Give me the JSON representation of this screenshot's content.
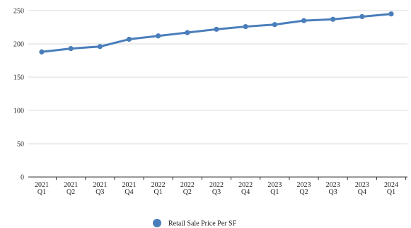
{
  "chart_data": {
    "type": "line",
    "categories": [
      "2021 Q1",
      "2021 Q2",
      "2021 Q3",
      "2021 Q4",
      "2022 Q1",
      "2022 Q2",
      "2022 Q3",
      "2022 Q4",
      "2023 Q1",
      "2023 Q2",
      "2023 Q3",
      "2023 Q4",
      "2024 Q1"
    ],
    "category_lines": [
      [
        "2021",
        "Q1"
      ],
      [
        "2021",
        "Q2"
      ],
      [
        "2021",
        "Q3"
      ],
      [
        "2021",
        "Q4"
      ],
      [
        "2022",
        "Q1"
      ],
      [
        "2022",
        "Q2"
      ],
      [
        "2022",
        "Q3"
      ],
      [
        "2022",
        "Q4"
      ],
      [
        "2023",
        "Q1"
      ],
      [
        "2023",
        "Q2"
      ],
      [
        "2023",
        "Q3"
      ],
      [
        "2023",
        "Q4"
      ],
      [
        "2024",
        "Q1"
      ]
    ],
    "series": [
      {
        "name": "Retail Sale Price Per SF",
        "color": "#4a7ebb",
        "values": [
          188,
          193,
          196,
          207,
          212,
          217,
          222,
          226,
          229,
          235,
          237,
          241,
          245
        ]
      }
    ],
    "ylim": [
      0,
      250
    ],
    "yticks": [
      0,
      50,
      100,
      150,
      200,
      250
    ],
    "grid": true,
    "legend_position": "bottom-center",
    "title": "",
    "xlabel": "",
    "ylabel": ""
  }
}
